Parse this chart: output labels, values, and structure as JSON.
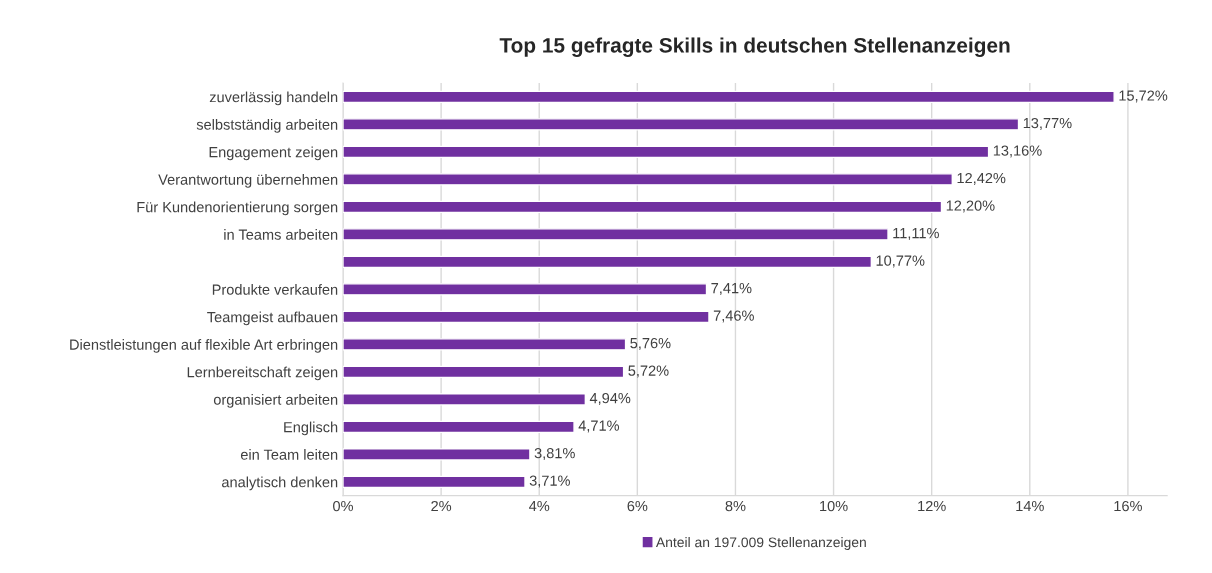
{
  "chart_data": {
    "type": "bar",
    "orientation": "horizontal",
    "title": "Top 15 gefragte Skills in deutschen Stellenanzeigen",
    "categories": [
      "zuverlässig handeln",
      "selbstständig arbeiten",
      "Engagement zeigen",
      "Verantwortung übernehmen",
      "Für Kundenorientierung sorgen",
      "in Teams arbeiten",
      null,
      "Produkte verkaufen",
      "Teamgeist aufbauen",
      "Dienstleistungen auf flexible Art erbringen",
      "Lernbereitschaft zeigen",
      "organisiert arbeiten",
      "Englisch",
      "ein Team leiten",
      "analytisch denken"
    ],
    "series": [
      {
        "name": "Anteil an 197.009 Stellenanzeigen",
        "color": "#7030a0",
        "values": [
          15.72,
          13.77,
          13.16,
          12.42,
          12.2,
          11.11,
          10.77,
          7.41,
          7.46,
          5.76,
          5.72,
          4.94,
          4.71,
          3.81,
          3.71
        ],
        "value_labels": [
          "15,72%",
          "13,77%",
          "13,16%",
          "12,42%",
          "12,20%",
          "11,11%",
          "10,77%",
          "7,41%",
          "7,46%",
          "5,76%",
          "5,72%",
          "4,94%",
          "4,71%",
          "3,81%",
          "3,71%"
        ]
      }
    ],
    "xlim": [
      0,
      16.8
    ],
    "xticks": [
      {
        "value": 0,
        "label": "0%"
      },
      {
        "value": 2,
        "label": "2%"
      },
      {
        "value": 4,
        "label": "4%"
      },
      {
        "value": 6,
        "label": "6%"
      },
      {
        "value": 8,
        "label": "8%"
      },
      {
        "value": 10,
        "label": "10%"
      },
      {
        "value": 12,
        "label": "12%"
      },
      {
        "value": 14,
        "label": "14%"
      },
      {
        "value": 16,
        "label": "16%"
      }
    ],
    "grid": "x",
    "legend": "bottom"
  }
}
